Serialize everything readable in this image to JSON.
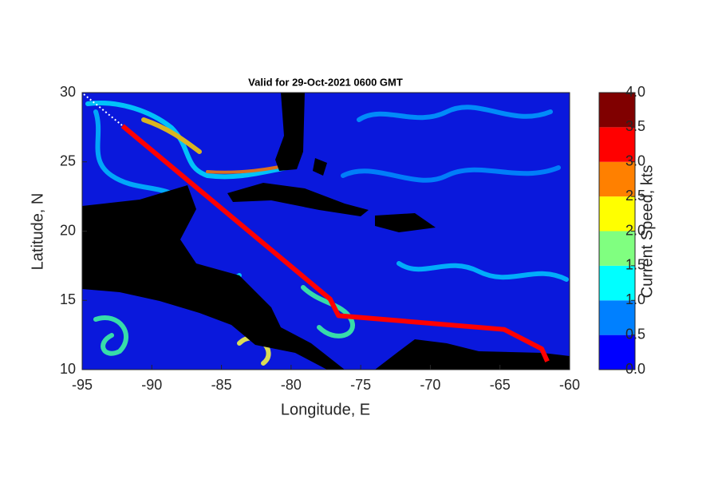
{
  "chart_data": {
    "type": "route_map",
    "title": "Valid for 29-Oct-2021 0600 GMT",
    "x_label": "Longitude, E",
    "y_label": "Latitude, N",
    "xlim": [
      -95,
      -60
    ],
    "ylim": [
      10,
      30
    ],
    "xticks": [
      -95,
      -90,
      -85,
      -80,
      -75,
      -70,
      -65,
      -60
    ],
    "yticks": [
      10,
      15,
      20,
      25,
      30
    ],
    "route": {
      "color": "#ff0000",
      "lon": [
        -92.1,
        -77.2,
        -76.6,
        -64.7,
        -62.0,
        -61.6
      ],
      "lat": [
        27.6,
        15.1,
        13.9,
        12.9,
        11.5,
        10.6
      ]
    },
    "colorbar": {
      "label": "Current Speed, kts",
      "clim": [
        0,
        4
      ],
      "colors": [
        "#0000ff",
        "#0080ff",
        "#00ffff",
        "#80ff80",
        "#ffff00",
        "#ff8000",
        "#ff0000",
        "#800000"
      ],
      "ticks": [
        {
          "value": 0,
          "label": "0.0"
        },
        0.5,
        {
          "value": 1,
          "label": "1.0"
        },
        1.5,
        {
          "value": 2,
          "label": "2.0"
        },
        2.5,
        {
          "value": 3,
          "label": "3.0"
        },
        3.5,
        {
          "value": 4,
          "label": "4.0"
        }
      ]
    }
  }
}
